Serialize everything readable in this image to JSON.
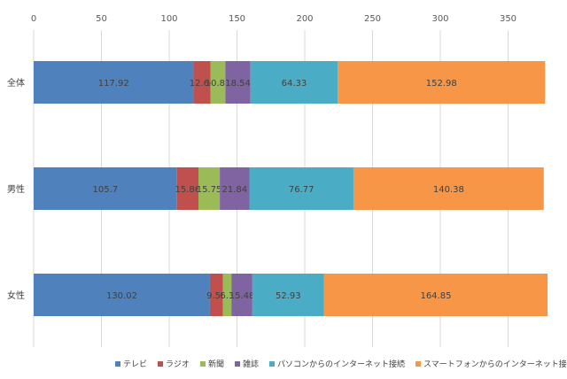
{
  "chart_data": {
    "type": "bar",
    "orientation": "horizontal",
    "stacked": true,
    "categories": [
      "全体",
      "男性",
      "女性"
    ],
    "series": [
      {
        "name": "テレビ",
        "color": "#4f81bd",
        "values": [
          117.92,
          105.7,
          130.02
        ]
      },
      {
        "name": "ラジオ",
        "color": "#c0504d",
        "values": [
          12.64,
          15.86,
          9.55
        ]
      },
      {
        "name": "新聞",
        "color": "#9bbb59",
        "values": [
          10.88,
          15.75,
          6.3
        ]
      },
      {
        "name": "雑誌",
        "color": "#8064a2",
        "values": [
          18.54,
          21.84,
          15.48
        ]
      },
      {
        "name": "パソコンからのインターネット接続",
        "color": "#4bacc6",
        "values": [
          64.33,
          76.77,
          52.93
        ]
      },
      {
        "name": "スマートフォンからのインターネット接続",
        "color": "#f79646",
        "values": [
          152.98,
          140.38,
          164.85
        ]
      }
    ],
    "x_ticks": [
      0,
      50,
      100,
      150,
      200,
      250,
      300,
      350
    ],
    "xlim": [
      0,
      383
    ],
    "axis_position": "top",
    "grid": true,
    "legend_position": "bottom",
    "data_labels": [
      [
        "117.92",
        "12.64",
        "10.88",
        "18.54",
        "64.33",
        "152.98"
      ],
      [
        "105.7",
        "15.86",
        "15.75",
        "21.84",
        "76.77",
        "140.38"
      ],
      [
        "130.02",
        "9.55",
        "6.3",
        "15.48",
        "52.93",
        "164.85"
      ]
    ],
    "title": "",
    "xlabel": "",
    "ylabel": ""
  }
}
